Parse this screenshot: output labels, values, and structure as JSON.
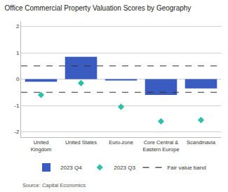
{
  "chart_data": {
    "type": "bar",
    "title": "Office Commercial Property Valuation Scores by Geography",
    "categories": [
      "United\nKingdom",
      "United States",
      "Euro-zone",
      "Core Central &\nEastern Europe",
      "Scandinavia"
    ],
    "series": [
      {
        "name": "2023 Q4",
        "type": "bar",
        "color": "#3a5bbf",
        "values": [
          -0.1,
          0.85,
          -0.05,
          -0.6,
          -0.35
        ]
      },
      {
        "name": "2023 Q3",
        "type": "scatter",
        "marker": "diamond",
        "color": "#2dbfaa",
        "values": [
          -0.6,
          -0.15,
          -1.05,
          -1.6,
          -1.55
        ]
      }
    ],
    "fair_value_band": {
      "name": "Fair value band",
      "values": [
        0.5,
        -0.5
      ],
      "color": "#333333",
      "line_style": "dashed"
    },
    "source": "Source: Capital Economics",
    "ylim": [
      -2.2,
      2.2
    ],
    "yticks": [
      -2,
      -1,
      0,
      1,
      2
    ],
    "grid": true,
    "legend": "bottom"
  }
}
